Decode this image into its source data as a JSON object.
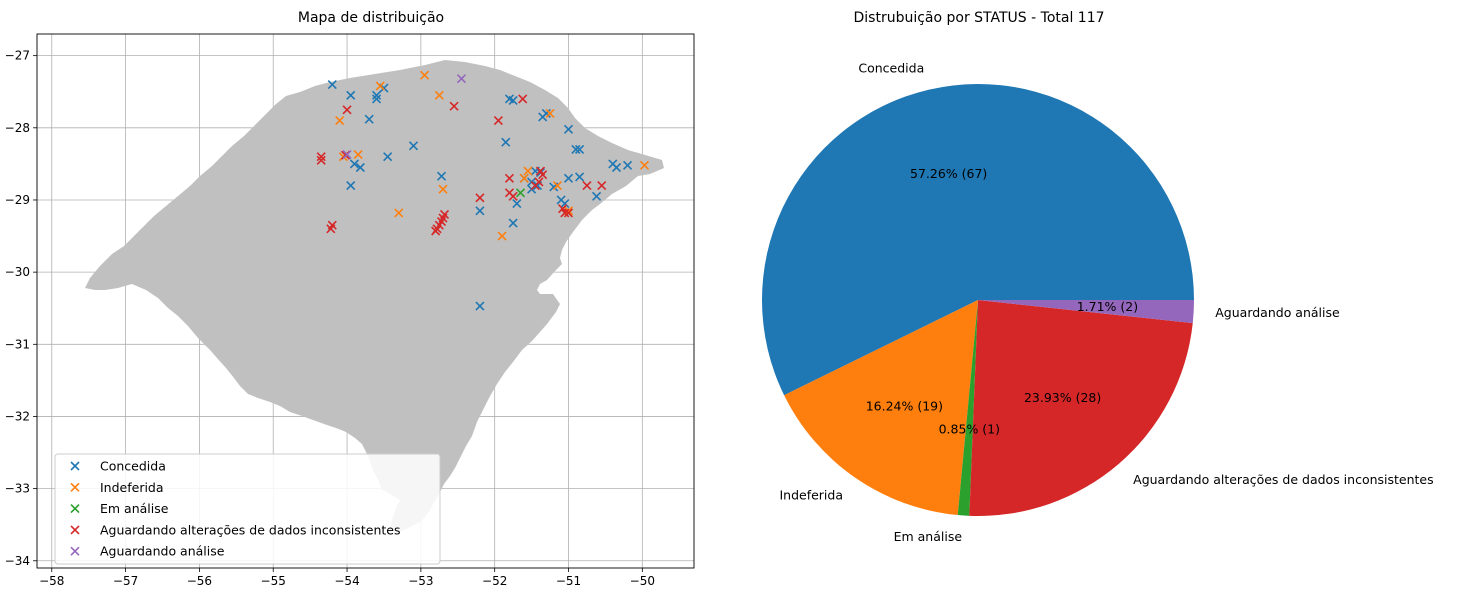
{
  "chart_data": [
    {
      "type": "scatter",
      "title": "Mapa de distribuição",
      "xlabel": "",
      "ylabel": "",
      "xlim": [
        -58.2,
        -49.3
      ],
      "ylim": [
        -34.1,
        -26.7
      ],
      "xticks": [
        -58,
        -57,
        -56,
        -55,
        -54,
        -53,
        -52,
        -51,
        -50
      ],
      "yticks": [
        -27,
        -28,
        -29,
        -30,
        -31,
        -32,
        -33,
        -34
      ],
      "xtick_labels": [
        "−58",
        "−57",
        "−56",
        "−55",
        "−54",
        "−53",
        "−52",
        "−51",
        "−50"
      ],
      "ytick_labels": [
        "−27",
        "−28",
        "−29",
        "−30",
        "−31",
        "−32",
        "−33",
        "−34"
      ],
      "grid": true,
      "background": "map of Rio Grande do Sul (gray)",
      "legend_position": "lower-left",
      "marker": "x",
      "series": [
        {
          "name": "Concedida",
          "color": "#1f77b4",
          "points": [
            [
              -54.2,
              -27.4
            ],
            [
              -53.95,
              -27.55
            ],
            [
              -53.6,
              -27.55
            ],
            [
              -53.6,
              -27.6
            ],
            [
              -53.5,
              -27.45
            ],
            [
              -53.7,
              -27.88
            ],
            [
              -53.9,
              -28.5
            ],
            [
              -53.82,
              -28.55
            ],
            [
              -53.45,
              -28.4
            ],
            [
              -53.95,
              -28.8
            ],
            [
              -53.1,
              -28.25
            ],
            [
              -52.72,
              -28.67
            ],
            [
              -52.2,
              -29.15
            ],
            [
              -52.2,
              -30.47
            ],
            [
              -51.8,
              -27.6
            ],
            [
              -51.75,
              -27.62
            ],
            [
              -51.3,
              -27.8
            ],
            [
              -51.35,
              -27.85
            ],
            [
              -51.85,
              -28.2
            ],
            [
              -51.0,
              -28.02
            ],
            [
              -50.85,
              -28.3
            ],
            [
              -50.9,
              -28.3
            ],
            [
              -50.4,
              -28.5
            ],
            [
              -50.35,
              -28.55
            ],
            [
              -50.2,
              -28.52
            ],
            [
              -51.6,
              -28.7
            ],
            [
              -51.5,
              -28.75
            ],
            [
              -51.45,
              -28.6
            ],
            [
              -51.38,
              -28.62
            ],
            [
              -51.42,
              -28.8
            ],
            [
              -51.5,
              -28.85
            ],
            [
              -51.0,
              -28.7
            ],
            [
              -50.85,
              -28.68
            ],
            [
              -50.62,
              -28.95
            ],
            [
              -51.1,
              -29.0
            ],
            [
              -51.05,
              -29.05
            ],
            [
              -51.7,
              -29.05
            ],
            [
              -51.75,
              -29.32
            ],
            [
              -51.2,
              -28.82
            ]
          ]
        },
        {
          "name": "Indeferida",
          "color": "#ff7f0e",
          "points": [
            [
              -52.95,
              -27.27
            ],
            [
              -53.55,
              -27.42
            ],
            [
              -52.75,
              -27.55
            ],
            [
              -54.1,
              -27.9
            ],
            [
              -53.85,
              -28.37
            ],
            [
              -54.05,
              -28.4
            ],
            [
              -53.3,
              -29.18
            ],
            [
              -52.7,
              -28.85
            ],
            [
              -51.55,
              -28.6
            ],
            [
              -51.25,
              -27.8
            ],
            [
              -51.9,
              -29.5
            ],
            [
              -51.0,
              -29.15
            ],
            [
              -51.6,
              -28.7
            ],
            [
              -49.97,
              -28.52
            ],
            [
              -51.15,
              -28.8
            ]
          ]
        },
        {
          "name": "Em análise",
          "color": "#2ca02c",
          "points": [
            [
              -51.65,
              -28.9
            ]
          ]
        },
        {
          "name": "Aguardando alterações de dados inconsistentes",
          "color": "#d62728",
          "points": [
            [
              -54.0,
              -27.75
            ],
            [
              -54.35,
              -28.4
            ],
            [
              -54.35,
              -28.45
            ],
            [
              -54.2,
              -29.35
            ],
            [
              -54.22,
              -29.4
            ],
            [
              -54.02,
              -28.38
            ],
            [
              -52.55,
              -27.7
            ],
            [
              -51.95,
              -27.9
            ],
            [
              -51.62,
              -27.6
            ],
            [
              -51.8,
              -28.7
            ],
            [
              -51.8,
              -28.9
            ],
            [
              -51.75,
              -28.95
            ],
            [
              -52.2,
              -28.97
            ],
            [
              -51.45,
              -28.8
            ],
            [
              -51.4,
              -28.75
            ],
            [
              -51.05,
              -29.18
            ],
            [
              -51.08,
              -29.12
            ],
            [
              -51.0,
              -29.18
            ],
            [
              -50.75,
              -28.8
            ],
            [
              -50.55,
              -28.8
            ],
            [
              -52.7,
              -29.25
            ],
            [
              -52.72,
              -29.3
            ],
            [
              -52.75,
              -29.35
            ],
            [
              -52.78,
              -29.4
            ],
            [
              -52.8,
              -29.43
            ],
            [
              -52.68,
              -29.2
            ],
            [
              -51.38,
              -28.6
            ],
            [
              -51.35,
              -28.65
            ]
          ]
        },
        {
          "name": "Aguardando análise",
          "color": "#9467bd",
          "points": [
            [
              -52.45,
              -27.32
            ],
            [
              -54.0,
              -28.37
            ]
          ]
        }
      ]
    },
    {
      "type": "pie",
      "title": "Distrubuição por STATUS - Total 117",
      "total": 117,
      "start_angle": 0,
      "direction": "counterclockwise",
      "categories": [
        "Concedida",
        "Indeferida",
        "Em análise",
        "Aguardando alterações de dados inconsistentes",
        "Aguardando análise"
      ],
      "values": [
        67,
        19,
        1,
        28,
        2
      ],
      "percent_labels": [
        "57.26%  (67)",
        "16.24%  (19)",
        "0.85%  (1)",
        "23.93%  (28)",
        "1.71%  (2)"
      ],
      "colors": [
        "#1f77b4",
        "#ff7f0e",
        "#2ca02c",
        "#d62728",
        "#9467bd"
      ]
    }
  ]
}
